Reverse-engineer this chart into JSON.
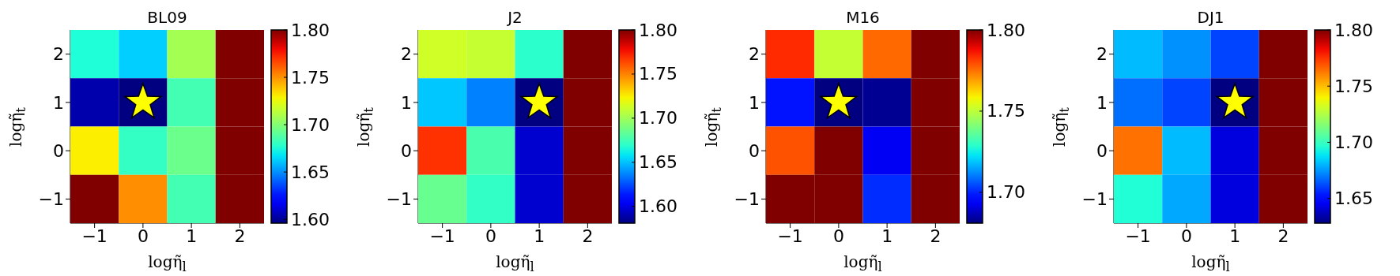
{
  "chart_data": [
    {
      "type": "heatmap",
      "title": "BL09",
      "xlabel": "logη̃$_{l}$",
      "ylabel": "logη̃$_{t}$",
      "categories": [
        "−1",
        "0",
        "1",
        "2"
      ],
      "y_categories": [
        "2",
        "1",
        "0",
        "−1"
      ],
      "cells": [
        [
          1.675,
          1.663,
          1.708,
          1.8
        ],
        [
          1.604,
          1.596,
          1.684,
          1.8
        ],
        [
          1.73,
          1.68,
          1.694,
          1.8
        ],
        [
          1.8,
          1.751,
          1.684,
          1.8
        ]
      ],
      "clim": [
        1.596,
        1.8
      ],
      "cticks": [
        {
          "value": 1.6,
          "label": "1.60"
        },
        {
          "value": 1.65,
          "label": "1.65"
        },
        {
          "value": 1.7,
          "label": "1.70"
        },
        {
          "value": 1.75,
          "label": "1.75"
        },
        {
          "value": 1.8,
          "label": "1.80"
        }
      ],
      "series": [
        {
          "type": "scatter",
          "x": [
            "0"
          ],
          "values": [
            1
          ],
          "marker": "star",
          "color": "#ffff00"
        }
      ]
    },
    {
      "type": "heatmap",
      "title": "J2",
      "xlabel": "logη̃$_{l}$",
      "ylabel": "logη̃$_{t}$",
      "categories": [
        "−1",
        "0",
        "1",
        "2"
      ],
      "y_categories": [
        "2",
        "1",
        "0",
        "−1"
      ],
      "cells": [
        [
          1.713,
          1.71,
          1.669,
          1.8
        ],
        [
          1.651,
          1.636,
          1.581,
          1.8
        ],
        [
          1.769,
          1.677,
          1.596,
          1.8
        ],
        [
          1.685,
          1.671,
          1.596,
          1.8
        ]
      ],
      "clim": [
        1.581,
        1.8
      ],
      "cticks": [
        {
          "value": 1.6,
          "label": "1.60"
        },
        {
          "value": 1.65,
          "label": "1.65"
        },
        {
          "value": 1.7,
          "label": "1.70"
        },
        {
          "value": 1.75,
          "label": "1.75"
        },
        {
          "value": 1.8,
          "label": "1.80"
        }
      ],
      "series": [
        {
          "type": "scatter",
          "x": [
            "1"
          ],
          "values": [
            1
          ],
          "marker": "star",
          "color": "#ffff00"
        }
      ]
    },
    {
      "type": "heatmap",
      "title": "M16",
      "xlabel": "logη̃$_{l}$",
      "ylabel": "logη̃$_{t}$",
      "categories": [
        "−1",
        "0",
        "1",
        "2"
      ],
      "y_categories": [
        "2",
        "1",
        "0",
        "−1"
      ],
      "cells": [
        [
          1.784,
          1.751,
          1.776,
          1.8
        ],
        [
          1.698,
          1.681,
          1.683,
          1.8
        ],
        [
          1.779,
          1.8,
          1.693,
          1.8
        ],
        [
          1.8,
          1.8,
          1.701,
          1.8
        ]
      ],
      "clim": [
        1.681,
        1.8
      ],
      "cticks": [
        {
          "value": 1.7,
          "label": "1.70"
        },
        {
          "value": 1.75,
          "label": "1.75"
        },
        {
          "value": 1.8,
          "label": "1.80"
        }
      ],
      "series": [
        {
          "type": "scatter",
          "x": [
            "0"
          ],
          "values": [
            1
          ],
          "marker": "star",
          "color": "#ffff00"
        }
      ]
    },
    {
      "type": "heatmap",
      "title": "DJ1",
      "xlabel": "logη̃$_{l}$",
      "ylabel": "logη̃$_{t}$",
      "categories": [
        "−1",
        "0",
        "1",
        "2"
      ],
      "y_categories": [
        "2",
        "1",
        "0",
        "−1"
      ],
      "cells": [
        [
          1.681,
          1.674,
          1.661,
          1.8
        ],
        [
          1.668,
          1.661,
          1.628,
          1.8
        ],
        [
          1.764,
          1.681,
          1.642,
          1.8
        ],
        [
          1.695,
          1.678,
          1.642,
          1.8
        ]
      ],
      "clim": [
        1.628,
        1.8
      ],
      "cticks": [
        {
          "value": 1.65,
          "label": "1.65"
        },
        {
          "value": 1.7,
          "label": "1.70"
        },
        {
          "value": 1.75,
          "label": "1.75"
        },
        {
          "value": 1.8,
          "label": "1.80"
        }
      ],
      "series": [
        {
          "type": "scatter",
          "x": [
            "1"
          ],
          "values": [
            1
          ],
          "marker": "star",
          "color": "#ffff00"
        }
      ]
    }
  ]
}
